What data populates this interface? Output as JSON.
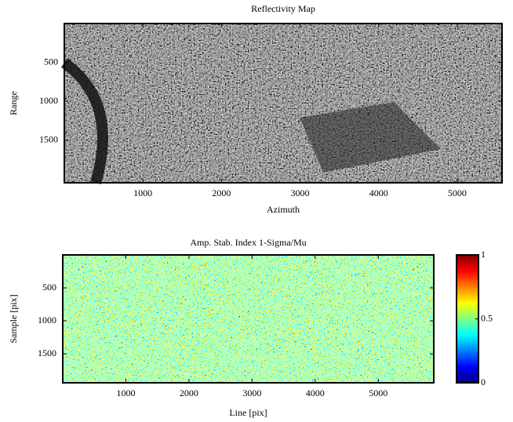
{
  "chart_data": [
    {
      "type": "image",
      "title": "Reflectivity Map",
      "xlabel": "Azimuth",
      "ylabel": "Range",
      "colormap": "gray",
      "xlim": [
        0,
        5570
      ],
      "ylim": [
        0,
        2050
      ],
      "y_reversed": true,
      "xticks": [
        1000,
        2000,
        3000,
        4000,
        5000
      ],
      "yticks": [
        500,
        1000,
        1500
      ]
    },
    {
      "type": "image",
      "title": "Amp. Stab. Index 1-Sigma/Mu",
      "xlabel": "Line [pix]",
      "ylabel": "Sample [pix]",
      "colormap": "jet",
      "xlim": [
        0,
        5880
      ],
      "ylim": [
        0,
        1940
      ],
      "y_reversed": true,
      "xticks": [
        1000,
        2000,
        3000,
        4000,
        5000
      ],
      "yticks": [
        500,
        1000,
        1500
      ],
      "clim": [
        0,
        1
      ],
      "cticks": [
        0,
        0.5,
        1
      ]
    }
  ]
}
